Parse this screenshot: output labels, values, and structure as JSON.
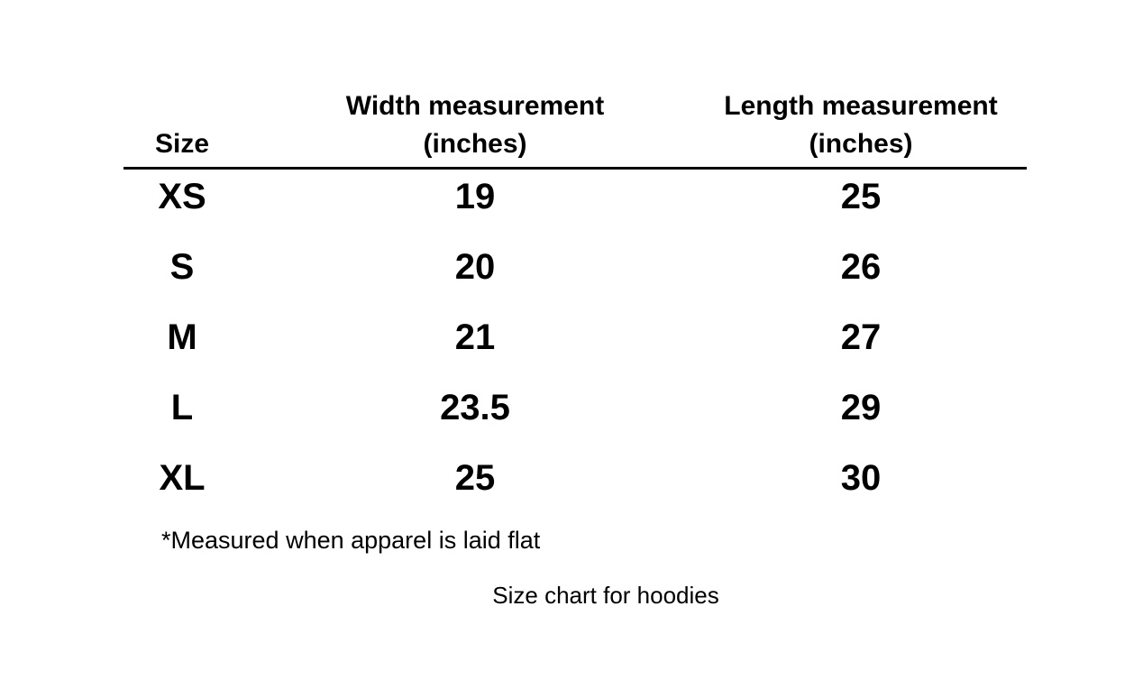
{
  "table": {
    "headers": {
      "size": "Size",
      "width_line1": "Width measurement",
      "width_line2": "(inches)",
      "length_line1": "Length measurement",
      "length_line2": "(inches)"
    },
    "rows": [
      {
        "size": "XS",
        "width": "19",
        "length": "25"
      },
      {
        "size": "S",
        "width": "20",
        "length": "26"
      },
      {
        "size": "M",
        "width": "21",
        "length": "27"
      },
      {
        "size": "L",
        "width": "23.5",
        "length": "29"
      },
      {
        "size": "XL",
        "width": "25",
        "length": "30"
      }
    ]
  },
  "footnote": "*Measured when apparel is laid flat",
  "caption": "Size chart for hoodies"
}
